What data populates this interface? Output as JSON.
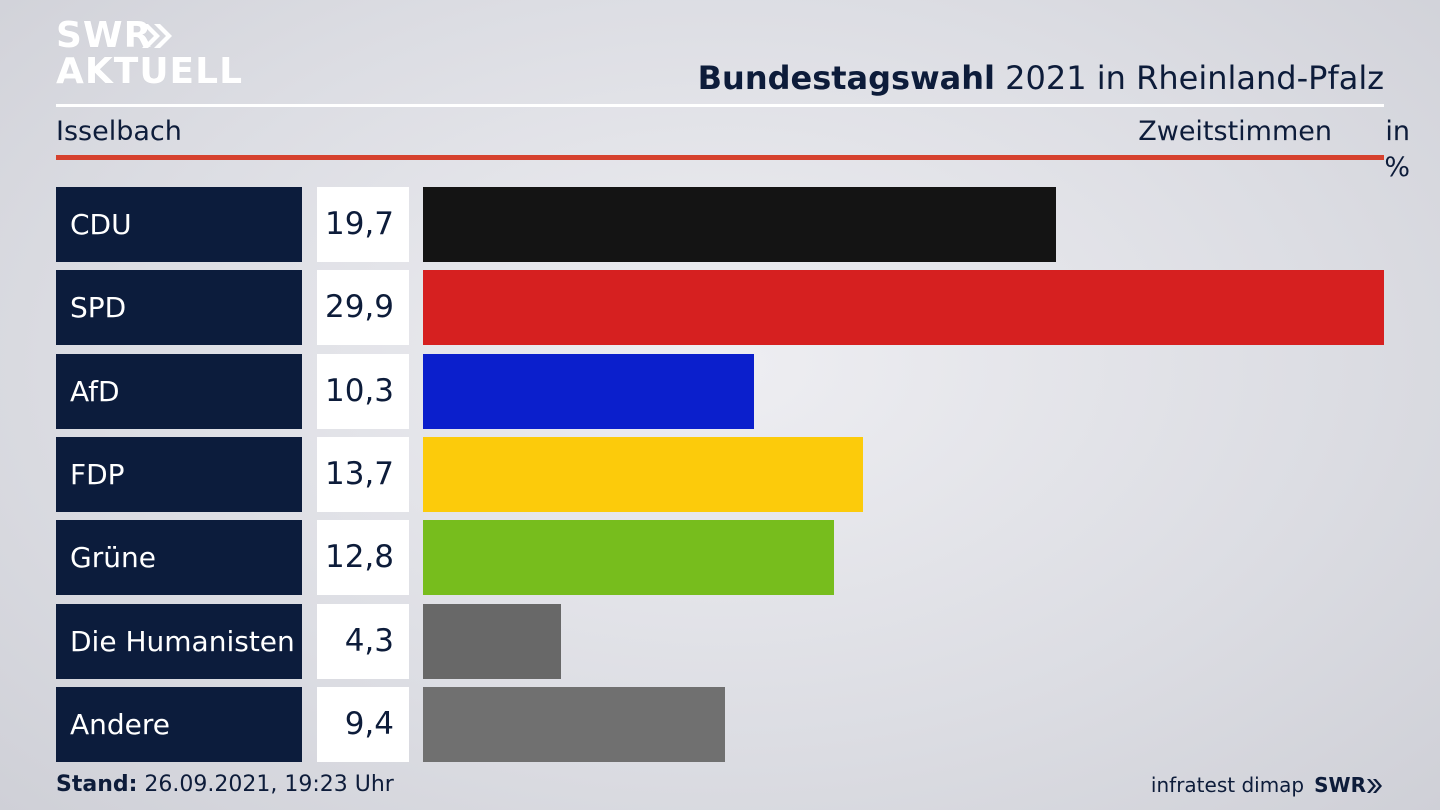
{
  "brand": {
    "logo_top": "SWR",
    "logo_bottom": "AKTUELL",
    "logo_icon": "double-chevron-icon"
  },
  "header": {
    "title_bold": "Bundestagswahl",
    "title_rest": " 2021 in Rheinland-Pfalz",
    "region": "Isselbach",
    "measure": "Zweitstimmen",
    "unit": "in %"
  },
  "chart_data": {
    "type": "bar",
    "orientation": "horizontal",
    "categories": [
      "CDU",
      "SPD",
      "AfD",
      "FDP",
      "Grüne",
      "Die Humanisten",
      "Andere"
    ],
    "values": [
      19.7,
      29.9,
      10.3,
      13.7,
      12.8,
      4.3,
      9.4
    ],
    "value_labels": [
      "19,7",
      "29,9",
      "10,3",
      "13,7",
      "12,8",
      "4,3",
      "9,4"
    ],
    "colors": [
      "#141414",
      "#d62020",
      "#0b1fcc",
      "#fccb0b",
      "#77bd1d",
      "#686868",
      "#707070"
    ],
    "xlim": [
      0,
      29.9
    ],
    "grid": false
  },
  "footer": {
    "stand_label": "Stand:",
    "stand_value": " 26.09.2021, 19:23 Uhr",
    "source": "infratest dimap",
    "source_brand": "SWR"
  },
  "colors": {
    "navy": "#0c1c3c",
    "accent_red": "#d6412e",
    "white": "#ffffff"
  }
}
